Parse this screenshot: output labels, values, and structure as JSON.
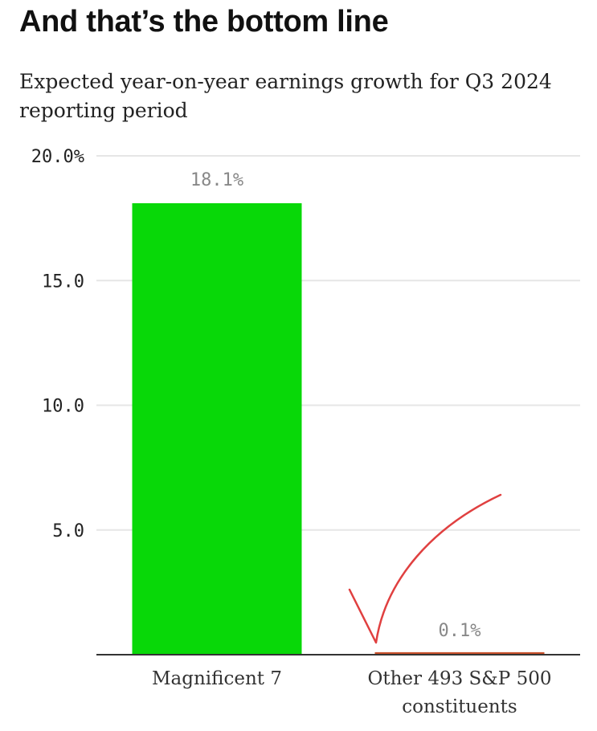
{
  "title": "And that’s the bottom line",
  "subtitle": "Expected year-on-year earnings growth for Q3 2024 reporting period",
  "chart_data": {
    "type": "bar",
    "title": "Expected year-on-year earnings growth for Q3 2024 reporting period",
    "xlabel": "",
    "ylabel": "",
    "categories": [
      [
        "Magnificent 7"
      ],
      [
        "Other 493 S&P 500",
        "constituents"
      ]
    ],
    "values": [
      18.1,
      0.1
    ],
    "data_labels": [
      "18.1%",
      "0.1%"
    ],
    "colors": [
      "#08d808",
      "#c8502a"
    ],
    "ylim": [
      0,
      20
    ],
    "yticks": [
      5,
      10,
      15,
      20
    ],
    "ytick_labels": [
      "5.0",
      "10.0",
      "15.0",
      "20.0%"
    ],
    "grid": true,
    "annotation_color": "#e04040"
  }
}
